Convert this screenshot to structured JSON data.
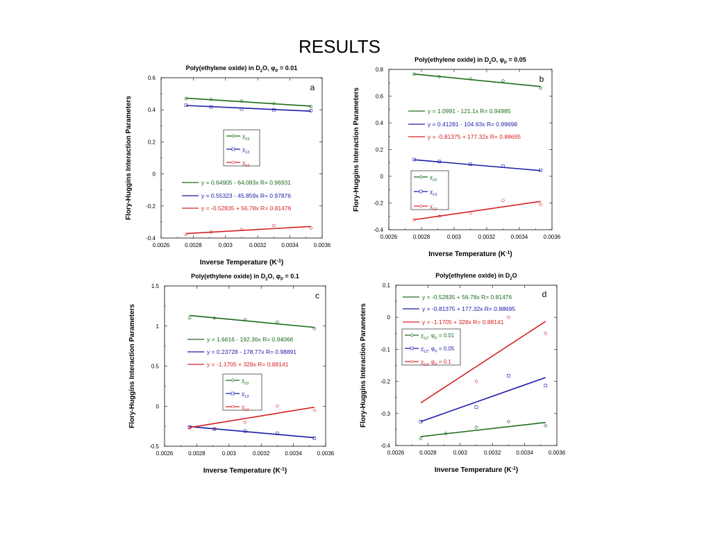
{
  "page": {
    "title": "RESULTS"
  },
  "chart_data": [
    {
      "id": "a",
      "type": "scatter",
      "panel_label": "a",
      "title_parts": {
        "main": "Poly(ethylene oxide) in D",
        "sub": "2",
        "after": "O, ",
        "phi": "φ",
        "phisub": "P",
        "end": " = 0.01"
      },
      "xlabel": "Inverse Temperature (K",
      "xlabel_sup": "-1",
      "xlabel_end": ")",
      "ylabel": "Flory-Huggins Interaction Parameters",
      "xlim": [
        0.0026,
        0.0036
      ],
      "ylim": [
        -0.4,
        0.6
      ],
      "xticks": [
        "0.0026",
        "0.0028",
        "0.003",
        "0.0032",
        "0.0034",
        "0.0036"
      ],
      "yticks": [
        "-0.4",
        "-0.2",
        "0",
        "0.2",
        "0.4",
        "0.6"
      ],
      "x": [
        0.002755,
        0.00291,
        0.0031,
        0.0033,
        0.00353
      ],
      "series": [
        {
          "name": "χ23",
          "sym": "χ",
          "sub": "23",
          "color": "#1a6b1a",
          "marker": "diamond",
          "values": [
            0.47,
            0.466,
            0.455,
            0.44,
            0.42
          ],
          "fit": [
            0.64905,
            -64.083
          ]
        },
        {
          "name": "χ13",
          "sym": "χ",
          "sub": "13",
          "color": "#1a1aa8",
          "marker": "square",
          "values": [
            0.428,
            0.418,
            0.405,
            0.4,
            0.395
          ],
          "fit": [
            0.55323,
            -45.859
          ]
        },
        {
          "name": "χ12",
          "sym": "χ",
          "sub": "12",
          "color": "#d42020",
          "marker": "circle",
          "values": [
            -0.378,
            -0.362,
            -0.347,
            -0.322,
            -0.338
          ],
          "fit": [
            -0.52835,
            56.78
          ]
        }
      ],
      "equations": [
        {
          "text": "y = 0.64905 - 64.083x   R= 0.96931",
          "color": "#1a6b1a"
        },
        {
          "text": "y = 0.55323 - 45.859x   R= 0.97876",
          "color": "#1a1aa8"
        },
        {
          "text": "y = -0.52835 + 56.78x   R= 0.81476",
          "color": "#d42020"
        }
      ]
    },
    {
      "id": "b",
      "type": "scatter",
      "panel_label": "b",
      "title_parts": {
        "main": "Poly(ethylene oxide) in D",
        "sub": "2",
        "after": "O, ",
        "phi": "φ",
        "phisub": "P",
        "end": " = 0.05"
      },
      "xlabel": "Inverse Temperature (K",
      "xlabel_sup": "-1",
      "xlabel_end": ")",
      "ylabel": "Flory-Huggins Interaction Parameters",
      "xlim": [
        0.0026,
        0.0036
      ],
      "ylim": [
        -0.4,
        0.8
      ],
      "xticks": [
        "0.0026",
        "0.0028",
        "0.003",
        "0.0032",
        "0.0034",
        "0.0036"
      ],
      "yticks": [
        "-0.4",
        "-0.2",
        "0",
        "0.2",
        "0.4",
        "0.6",
        "0.8"
      ],
      "x": [
        0.002755,
        0.00291,
        0.0031,
        0.0033,
        0.00353
      ],
      "series": [
        {
          "name": "χ23",
          "sym": "χ",
          "sub": "23",
          "color": "#1a6b1a",
          "marker": "diamond",
          "values": [
            0.765,
            0.745,
            0.73,
            0.715,
            0.66
          ],
          "fit": [
            1.0991,
            -121.1
          ]
        },
        {
          "name": "χ13",
          "sym": "χ",
          "sub": "13",
          "color": "#1a1aa8",
          "marker": "square",
          "values": [
            0.125,
            0.11,
            0.09,
            0.075,
            0.045
          ],
          "fit": [
            0.41281,
            -104.93
          ]
        },
        {
          "name": "χ12",
          "sym": "χ",
          "sub": "12",
          "color": "#d42020",
          "marker": "circle",
          "values": [
            -0.325,
            -0.3,
            -0.275,
            -0.18,
            -0.21
          ],
          "fit": [
            -0.81375,
            177.32
          ]
        }
      ],
      "equations": [
        {
          "text": "y = 1.0991 - 121.1x   R= 0.94985",
          "color": "#1a6b1a"
        },
        {
          "text": "y = 0.41281 - 104.93x   R= 0.99698",
          "color": "#1a1aa8"
        },
        {
          "text": "y = -0.81375 + 177.32x   R= 0.88695",
          "color": "#d42020"
        }
      ]
    },
    {
      "id": "c",
      "type": "scatter",
      "panel_label": "c",
      "title_parts": {
        "main": "Poly(ethylene oxide) in D",
        "sub": "2",
        "after": "O, ",
        "phi": "φ",
        "phisub": "P",
        "end": " = 0.1"
      },
      "xlabel": "Inverse Temperature (K",
      "xlabel_sup": "-1",
      "xlabel_end": ")",
      "ylabel": "Flory-Huggins Interaction Parameters",
      "xlim": [
        0.0026,
        0.0036
      ],
      "ylim": [
        -0.5,
        1.5
      ],
      "xticks": [
        "0.0026",
        "0.0028",
        "0.003",
        "0.0032",
        "0.0034",
        "0.0036"
      ],
      "yticks": [
        "-0.5",
        "0",
        "0.5",
        "1",
        "1.5"
      ],
      "x": [
        0.002755,
        0.00291,
        0.0031,
        0.0033,
        0.00353
      ],
      "series": [
        {
          "name": "χ23",
          "sym": "χ",
          "sub": "23",
          "color": "#1a6b1a",
          "marker": "diamond",
          "values": [
            1.1,
            1.1,
            1.08,
            1.05,
            0.97
          ],
          "fit": [
            1.6616,
            -192.36
          ]
        },
        {
          "name": "χ13",
          "sym": "χ",
          "sub": "13",
          "color": "#1a1aa8",
          "marker": "square",
          "values": [
            -0.26,
            -0.285,
            -0.31,
            -0.34,
            -0.4
          ],
          "fit": [
            0.23728,
            -178.77
          ]
        },
        {
          "name": "χ12",
          "sym": "χ",
          "sub": "12",
          "color": "#d42020",
          "marker": "circle",
          "values": [
            -0.27,
            -0.28,
            -0.2,
            0.0,
            -0.05
          ],
          "fit": [
            -1.1705,
            328
          ]
        }
      ],
      "equations": [
        {
          "text": "y = 1.6616 - 192.36x   R= 0.94066",
          "color": "#1a6b1a"
        },
        {
          "text": "y = 0.23728 - 178.77x   R= 0.98891",
          "color": "#1a1aa8"
        },
        {
          "text": "y = -1.1705 + 328x   R= 0.88141",
          "color": "#d42020"
        }
      ]
    },
    {
      "id": "d",
      "type": "scatter",
      "panel_label": "d",
      "title_parts": {
        "main": "Poly(ethylene oxide) in D",
        "sub": "2",
        "after": "O",
        "phi": "",
        "phisub": "",
        "end": ""
      },
      "xlabel": "Inverse Temperature (K",
      "xlabel_sup": "-1",
      "xlabel_end": ")",
      "ylabel": "Flory-Huggins Interaction Parameters",
      "xlim": [
        0.0026,
        0.0036
      ],
      "ylim": [
        -0.4,
        0.1
      ],
      "xticks": [
        "0.0026",
        "0.0028",
        "0.003",
        "0.0032",
        "0.0034",
        "0.0036"
      ],
      "yticks": [
        "-0.4",
        "-0.3",
        "-0.2",
        "-0.1",
        "0",
        "0.1"
      ],
      "x": [
        0.002755,
        0.00291,
        0.0031,
        0.0033,
        0.00353
      ],
      "series": [
        {
          "name": "χ12, φP = 0.01",
          "sym": "χ",
          "sub": "12",
          "legend_rest": ", φ",
          "legend_sub2": "P",
          "legend_end": " = 0.01",
          "color": "#1a6b1a",
          "marker": "diamond",
          "values": [
            -0.378,
            -0.362,
            -0.343,
            -0.325,
            -0.338
          ],
          "fit": [
            -0.52835,
            56.78
          ]
        },
        {
          "name": "χ12, φP = 0.05",
          "sym": "χ",
          "sub": "12",
          "legend_rest": ", φ",
          "legend_sub2": "P",
          "legend_end": " = 0.05",
          "color": "#1a1aa8",
          "marker": "square",
          "values": [
            -0.325,
            null,
            -0.28,
            -0.182,
            -0.213
          ],
          "fit": [
            -0.81375,
            177.32
          ]
        },
        {
          "name": "χ12, φP = 0.1",
          "sym": "χ",
          "sub": "12",
          "legend_rest": ", φ",
          "legend_sub2": "P",
          "legend_end": " = 0.1",
          "color": "#d42020",
          "marker": "circle",
          "values": [
            null,
            null,
            -0.2,
            0.0,
            -0.05
          ],
          "fit": [
            -1.1705,
            328
          ]
        }
      ],
      "equations": [
        {
          "text": "y = -0.52835 + 56.78x   R= 0.81476",
          "color": "#1a6b1a"
        },
        {
          "text": "y = -0.81375 + 177.32x   R= 0.88695",
          "color": "#1a1aa8"
        },
        {
          "text": "y = -1.1705 + 328x   R= 0.88141",
          "color": "#d42020"
        }
      ]
    }
  ]
}
